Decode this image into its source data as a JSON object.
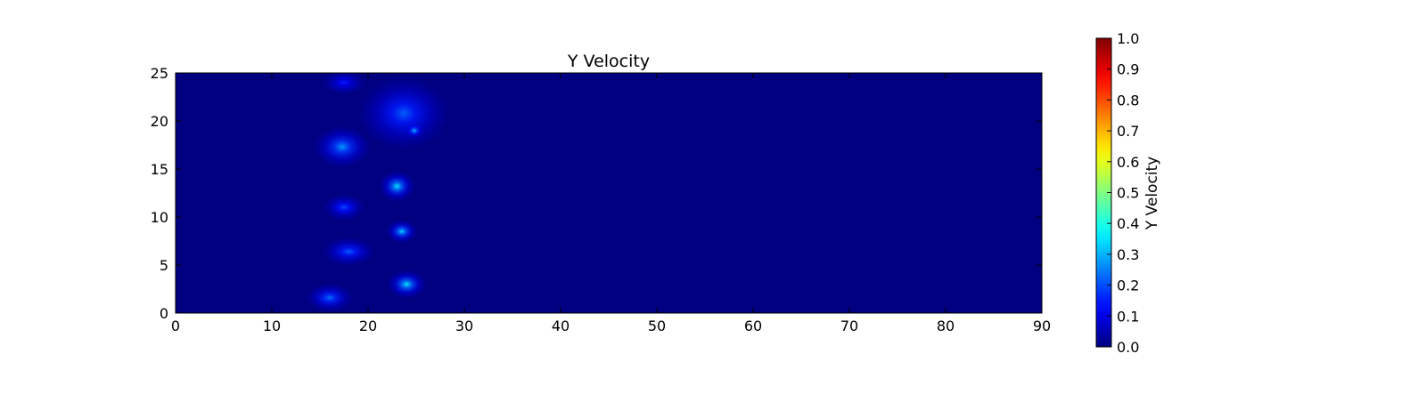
{
  "chart_data": {
    "type": "heatmap",
    "title": "Y Velocity",
    "xlabel": "",
    "ylabel": "",
    "xlim": [
      0,
      90
    ],
    "ylim": [
      0,
      25
    ],
    "x_ticks": [
      "0",
      "10",
      "20",
      "30",
      "40",
      "50",
      "60",
      "70",
      "80",
      "90"
    ],
    "y_ticks": [
      "0",
      "5",
      "10",
      "15",
      "20",
      "25"
    ],
    "colormap": "jet",
    "colorbar": {
      "label": "Y Velocity",
      "range": [
        0.0,
        1.0
      ],
      "ticks": [
        "0.0",
        "0.1",
        "0.2",
        "0.3",
        "0.4",
        "0.5",
        "0.6",
        "0.7",
        "0.8",
        "0.9",
        "1.0"
      ]
    },
    "background_value": 0.0,
    "features": [
      {
        "x": 17.5,
        "y": 24.0,
        "peak": 0.15,
        "spread": [
          1.6,
          0.9
        ]
      },
      {
        "x": 23.7,
        "y": 20.8,
        "peak": 0.22,
        "spread": [
          3.5,
          2.8
        ]
      },
      {
        "x": 24.8,
        "y": 19.0,
        "peak": 0.32,
        "spread": [
          0.7,
          0.6
        ]
      },
      {
        "x": 17.3,
        "y": 17.3,
        "peak": 0.28,
        "spread": [
          2.2,
          1.6
        ]
      },
      {
        "x": 23.0,
        "y": 13.2,
        "peak": 0.36,
        "spread": [
          1.4,
          1.2
        ]
      },
      {
        "x": 17.5,
        "y": 11.0,
        "peak": 0.2,
        "spread": [
          1.6,
          1.0
        ]
      },
      {
        "x": 23.5,
        "y": 8.5,
        "peak": 0.34,
        "spread": [
          1.2,
          0.9
        ]
      },
      {
        "x": 18.0,
        "y": 6.4,
        "peak": 0.22,
        "spread": [
          2.0,
          1.1
        ]
      },
      {
        "x": 24.0,
        "y": 3.0,
        "peak": 0.36,
        "spread": [
          1.5,
          1.1
        ]
      },
      {
        "x": 16.0,
        "y": 1.6,
        "peak": 0.24,
        "spread": [
          1.8,
          1.1
        ]
      }
    ]
  }
}
